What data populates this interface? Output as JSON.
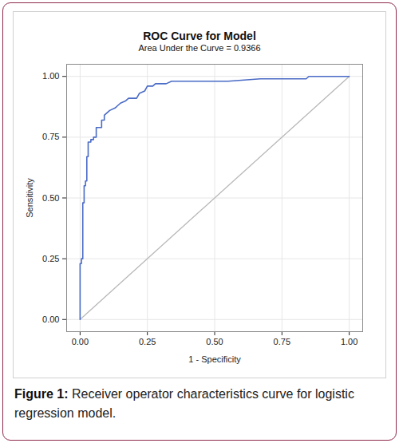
{
  "chart_data": {
    "type": "line",
    "title": "ROC Curve for Model",
    "subtitle": "Area Under the Curve = 0.9366",
    "x_label": "1 - Specificity",
    "y_label": "Sensitivity",
    "caption": {
      "label": "Figure 1:",
      "text": "Receiver operator characteristics curve for logistic regression model."
    },
    "x": [
      0,
      0,
      0.005,
      0.005,
      0.01,
      0.01,
      0.015,
      0.015,
      0.02,
      0.02,
      0.025,
      0.025,
      0.03,
      0.03,
      0.04,
      0.04,
      0.05,
      0.05,
      0.06,
      0.06,
      0.08,
      0.08,
      0.09,
      0.09,
      0.1,
      0.11,
      0.13,
      0.14,
      0.15,
      0.17,
      0.18,
      0.21,
      0.22,
      0.24,
      0.25,
      0.27,
      0.28,
      0.32,
      0.34,
      0.55,
      0.67,
      0.84,
      0.85,
      1.0
    ],
    "values": [
      0,
      0.23,
      0.23,
      0.25,
      0.25,
      0.48,
      0.48,
      0.55,
      0.55,
      0.57,
      0.57,
      0.67,
      0.67,
      0.73,
      0.73,
      0.74,
      0.74,
      0.75,
      0.75,
      0.79,
      0.79,
      0.82,
      0.82,
      0.84,
      0.85,
      0.86,
      0.87,
      0.88,
      0.89,
      0.9,
      0.91,
      0.91,
      0.93,
      0.94,
      0.96,
      0.96,
      0.97,
      0.97,
      0.98,
      0.98,
      0.99,
      0.99,
      1.0,
      1.0
    ],
    "color": "#4a6bc6",
    "reference_line": {
      "x": [
        0,
        1
      ],
      "values": [
        0,
        1
      ],
      "color": "#b8b8b8"
    },
    "xlim": [
      -0.05,
      1.05
    ],
    "ylim": [
      -0.05,
      1.05
    ],
    "xticks": [
      {
        "value": 0,
        "label": "0.00"
      },
      {
        "value": 0.25,
        "label": "0.25"
      },
      {
        "value": 0.5,
        "label": "0.50"
      },
      {
        "value": 0.75,
        "label": "0.75"
      },
      {
        "value": 1,
        "label": "1.00"
      }
    ],
    "yticks": [
      {
        "value": 0,
        "label": "0.00"
      },
      {
        "value": 0.25,
        "label": "0.25"
      },
      {
        "value": 0.5,
        "label": "0.50"
      },
      {
        "value": 0.75,
        "label": "0.75"
      },
      {
        "value": 1,
        "label": "1.00"
      }
    ],
    "grid": true
  }
}
